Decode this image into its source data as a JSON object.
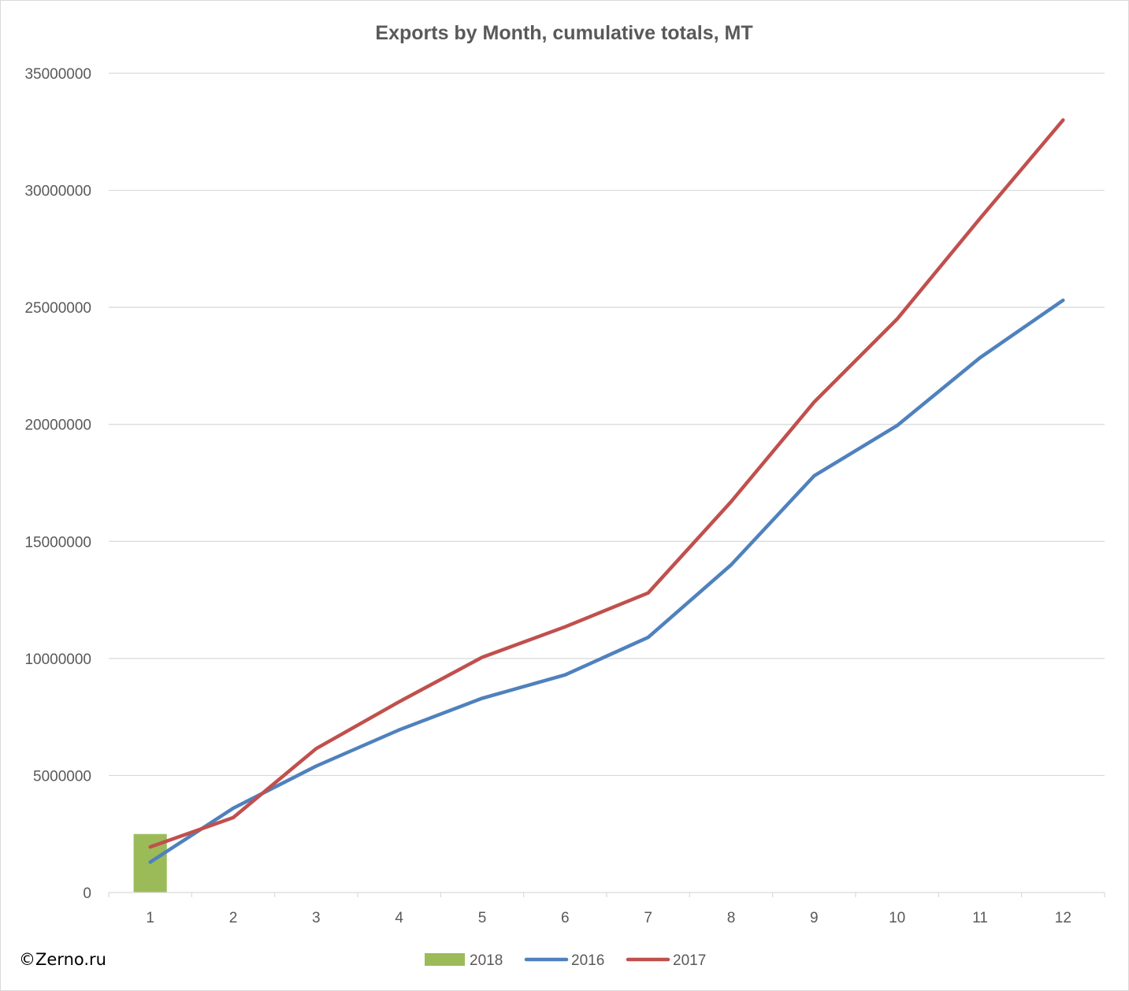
{
  "chart_data": {
    "type": "bar+line",
    "title": "Exports by Month, cumulative totals, MT",
    "xlabel": "",
    "ylabel": "",
    "categories": [
      "1",
      "2",
      "3",
      "4",
      "5",
      "6",
      "7",
      "8",
      "9",
      "10",
      "11",
      "12"
    ],
    "ylim": [
      0,
      35000000
    ],
    "y_ticks": [
      0,
      5000000,
      10000000,
      15000000,
      20000000,
      25000000,
      30000000,
      35000000
    ],
    "y_tick_labels": [
      "0",
      "5000000",
      "10000000",
      "15000000",
      "20000000",
      "25000000",
      "30000000",
      "35000000"
    ],
    "grid": true,
    "legend_position": "bottom",
    "series": [
      {
        "name": "2018",
        "kind": "bar",
        "color": "#9bbb59",
        "values": [
          2500000,
          null,
          null,
          null,
          null,
          null,
          null,
          null,
          null,
          null,
          null,
          null
        ]
      },
      {
        "name": "2016",
        "kind": "line",
        "color": "#4f81bd",
        "values": [
          1300000,
          3600000,
          5400000,
          6950000,
          8300000,
          9300000,
          10900000,
          14000000,
          17800000,
          19950000,
          22850000,
          25300000
        ]
      },
      {
        "name": "2017",
        "kind": "line",
        "color": "#c0504d",
        "values": [
          1950000,
          3200000,
          6150000,
          8150000,
          10050000,
          11350000,
          12800000,
          16700000,
          20950000,
          24500000,
          28800000,
          33000000
        ]
      }
    ]
  },
  "watermark": "©Zerno.ru"
}
